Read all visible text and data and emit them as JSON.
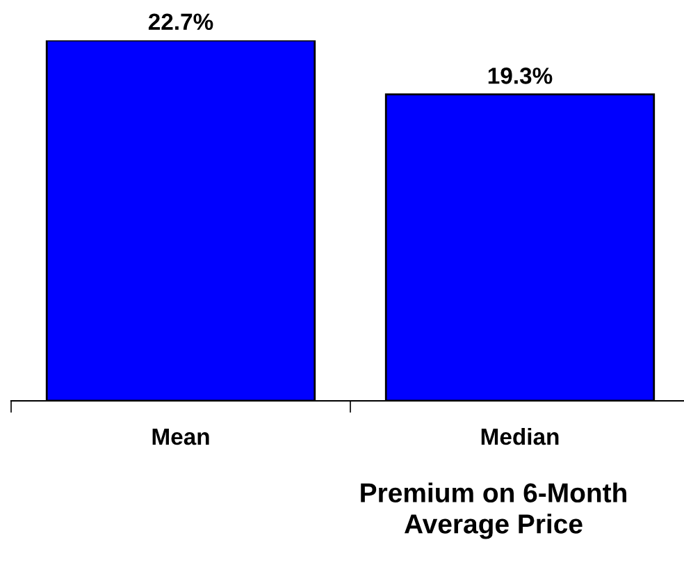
{
  "chart_data": {
    "type": "bar",
    "categories": [
      "Mean",
      "Median"
    ],
    "values": [
      22.7,
      19.3
    ],
    "value_labels": [
      "22.7%",
      "19.3%"
    ],
    "color": "#0000ff",
    "xlabel": "Premium on 6-Month\nAverage Price",
    "grid": false
  }
}
